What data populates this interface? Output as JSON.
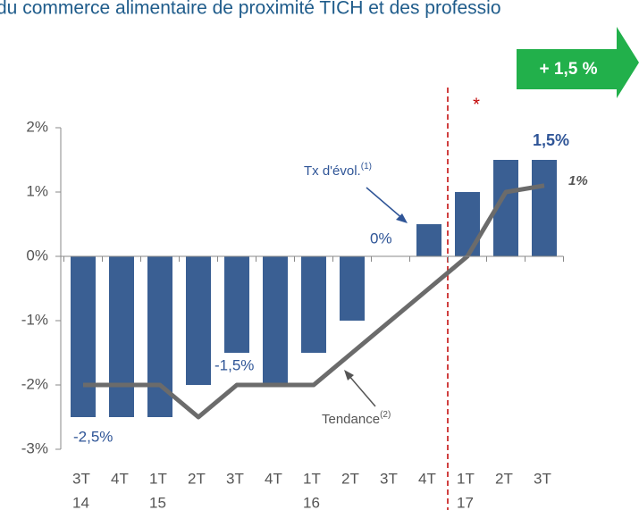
{
  "chart_data": {
    "type": "bar",
    "title": "du commerce alimentaire de proximité TICH et des professio",
    "categories": [
      [
        "3T",
        "14"
      ],
      [
        "4T",
        null
      ],
      [
        "1T",
        "15"
      ],
      [
        "2T",
        null
      ],
      [
        "3T",
        null
      ],
      [
        "4T",
        null
      ],
      [
        "1T",
        "16"
      ],
      [
        "2T",
        null
      ],
      [
        "3T",
        null
      ],
      [
        "4T",
        null
      ],
      [
        "1T",
        "17"
      ],
      [
        "2T",
        null
      ],
      [
        "3T",
        null
      ]
    ],
    "series": [
      {
        "name": "Tx d'évol.",
        "type": "bar",
        "color": "#3a5f93",
        "values": [
          -2.5,
          -2.5,
          -2.5,
          -2.0,
          -1.5,
          -2.0,
          -1.5,
          -1.0,
          0,
          0.5,
          1.0,
          1.5,
          1.5
        ],
        "value_labels": [
          "-2,5%",
          null,
          null,
          null,
          "-1,5%",
          null,
          null,
          null,
          "0%",
          null,
          null,
          null,
          "1,5%"
        ]
      },
      {
        "name": "Tendance",
        "type": "line",
        "color": "#6b6b6b",
        "values": [
          -2,
          -2,
          -2,
          -2.5,
          -2,
          -2,
          -2,
          -1.5,
          -1.0,
          -0.5,
          0,
          1.0,
          1.1
        ],
        "value_labels": [
          null,
          null,
          null,
          null,
          null,
          null,
          null,
          null,
          null,
          null,
          null,
          null,
          "1%"
        ]
      }
    ],
    "ylim": [
      -3,
      2
    ],
    "yticks": [
      {
        "value": -3,
        "label": "-3%"
      },
      {
        "value": -2,
        "label": "-2%"
      },
      {
        "value": -1,
        "label": "-1%"
      },
      {
        "value": 0,
        "label": "0%"
      },
      {
        "value": 1,
        "label": "1%"
      },
      {
        "value": 2,
        "label": "2%"
      }
    ],
    "annotations": {
      "bar_label": "Tx d'évol.",
      "bar_note": "(1)",
      "trend_label": "Tendance",
      "trend_note": "(2)",
      "highlight": "+ 1,5 %",
      "asterisk": "*"
    }
  }
}
